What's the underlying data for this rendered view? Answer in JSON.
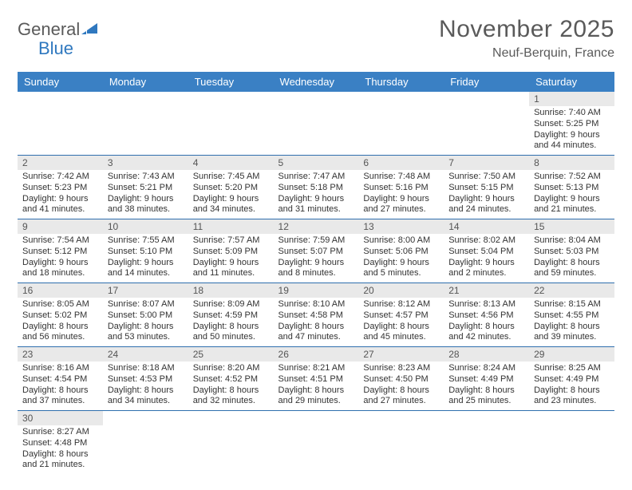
{
  "logo": {
    "text1": "General",
    "text2": "Blue",
    "icon_color": "#2f78bf",
    "text1_color": "#5a5a5a"
  },
  "title": "November 2025",
  "location": "Neuf-Berquin, France",
  "header_bg": "#3a80c4",
  "day_bg": "#e9e9e9",
  "border_color": "#2f6fae",
  "weekdays": [
    "Sunday",
    "Monday",
    "Tuesday",
    "Wednesday",
    "Thursday",
    "Friday",
    "Saturday"
  ],
  "weeks": [
    [
      null,
      null,
      null,
      null,
      null,
      null,
      {
        "n": "1",
        "sr": "Sunrise: 7:40 AM",
        "ss": "Sunset: 5:25 PM",
        "d1": "Daylight: 9 hours",
        "d2": "and 44 minutes."
      }
    ],
    [
      {
        "n": "2",
        "sr": "Sunrise: 7:42 AM",
        "ss": "Sunset: 5:23 PM",
        "d1": "Daylight: 9 hours",
        "d2": "and 41 minutes."
      },
      {
        "n": "3",
        "sr": "Sunrise: 7:43 AM",
        "ss": "Sunset: 5:21 PM",
        "d1": "Daylight: 9 hours",
        "d2": "and 38 minutes."
      },
      {
        "n": "4",
        "sr": "Sunrise: 7:45 AM",
        "ss": "Sunset: 5:20 PM",
        "d1": "Daylight: 9 hours",
        "d2": "and 34 minutes."
      },
      {
        "n": "5",
        "sr": "Sunrise: 7:47 AM",
        "ss": "Sunset: 5:18 PM",
        "d1": "Daylight: 9 hours",
        "d2": "and 31 minutes."
      },
      {
        "n": "6",
        "sr": "Sunrise: 7:48 AM",
        "ss": "Sunset: 5:16 PM",
        "d1": "Daylight: 9 hours",
        "d2": "and 27 minutes."
      },
      {
        "n": "7",
        "sr": "Sunrise: 7:50 AM",
        "ss": "Sunset: 5:15 PM",
        "d1": "Daylight: 9 hours",
        "d2": "and 24 minutes."
      },
      {
        "n": "8",
        "sr": "Sunrise: 7:52 AM",
        "ss": "Sunset: 5:13 PM",
        "d1": "Daylight: 9 hours",
        "d2": "and 21 minutes."
      }
    ],
    [
      {
        "n": "9",
        "sr": "Sunrise: 7:54 AM",
        "ss": "Sunset: 5:12 PM",
        "d1": "Daylight: 9 hours",
        "d2": "and 18 minutes."
      },
      {
        "n": "10",
        "sr": "Sunrise: 7:55 AM",
        "ss": "Sunset: 5:10 PM",
        "d1": "Daylight: 9 hours",
        "d2": "and 14 minutes."
      },
      {
        "n": "11",
        "sr": "Sunrise: 7:57 AM",
        "ss": "Sunset: 5:09 PM",
        "d1": "Daylight: 9 hours",
        "d2": "and 11 minutes."
      },
      {
        "n": "12",
        "sr": "Sunrise: 7:59 AM",
        "ss": "Sunset: 5:07 PM",
        "d1": "Daylight: 9 hours",
        "d2": "and 8 minutes."
      },
      {
        "n": "13",
        "sr": "Sunrise: 8:00 AM",
        "ss": "Sunset: 5:06 PM",
        "d1": "Daylight: 9 hours",
        "d2": "and 5 minutes."
      },
      {
        "n": "14",
        "sr": "Sunrise: 8:02 AM",
        "ss": "Sunset: 5:04 PM",
        "d1": "Daylight: 9 hours",
        "d2": "and 2 minutes."
      },
      {
        "n": "15",
        "sr": "Sunrise: 8:04 AM",
        "ss": "Sunset: 5:03 PM",
        "d1": "Daylight: 8 hours",
        "d2": "and 59 minutes."
      }
    ],
    [
      {
        "n": "16",
        "sr": "Sunrise: 8:05 AM",
        "ss": "Sunset: 5:02 PM",
        "d1": "Daylight: 8 hours",
        "d2": "and 56 minutes."
      },
      {
        "n": "17",
        "sr": "Sunrise: 8:07 AM",
        "ss": "Sunset: 5:00 PM",
        "d1": "Daylight: 8 hours",
        "d2": "and 53 minutes."
      },
      {
        "n": "18",
        "sr": "Sunrise: 8:09 AM",
        "ss": "Sunset: 4:59 PM",
        "d1": "Daylight: 8 hours",
        "d2": "and 50 minutes."
      },
      {
        "n": "19",
        "sr": "Sunrise: 8:10 AM",
        "ss": "Sunset: 4:58 PM",
        "d1": "Daylight: 8 hours",
        "d2": "and 47 minutes."
      },
      {
        "n": "20",
        "sr": "Sunrise: 8:12 AM",
        "ss": "Sunset: 4:57 PM",
        "d1": "Daylight: 8 hours",
        "d2": "and 45 minutes."
      },
      {
        "n": "21",
        "sr": "Sunrise: 8:13 AM",
        "ss": "Sunset: 4:56 PM",
        "d1": "Daylight: 8 hours",
        "d2": "and 42 minutes."
      },
      {
        "n": "22",
        "sr": "Sunrise: 8:15 AM",
        "ss": "Sunset: 4:55 PM",
        "d1": "Daylight: 8 hours",
        "d2": "and 39 minutes."
      }
    ],
    [
      {
        "n": "23",
        "sr": "Sunrise: 8:16 AM",
        "ss": "Sunset: 4:54 PM",
        "d1": "Daylight: 8 hours",
        "d2": "and 37 minutes."
      },
      {
        "n": "24",
        "sr": "Sunrise: 8:18 AM",
        "ss": "Sunset: 4:53 PM",
        "d1": "Daylight: 8 hours",
        "d2": "and 34 minutes."
      },
      {
        "n": "25",
        "sr": "Sunrise: 8:20 AM",
        "ss": "Sunset: 4:52 PM",
        "d1": "Daylight: 8 hours",
        "d2": "and 32 minutes."
      },
      {
        "n": "26",
        "sr": "Sunrise: 8:21 AM",
        "ss": "Sunset: 4:51 PM",
        "d1": "Daylight: 8 hours",
        "d2": "and 29 minutes."
      },
      {
        "n": "27",
        "sr": "Sunrise: 8:23 AM",
        "ss": "Sunset: 4:50 PM",
        "d1": "Daylight: 8 hours",
        "d2": "and 27 minutes."
      },
      {
        "n": "28",
        "sr": "Sunrise: 8:24 AM",
        "ss": "Sunset: 4:49 PM",
        "d1": "Daylight: 8 hours",
        "d2": "and 25 minutes."
      },
      {
        "n": "29",
        "sr": "Sunrise: 8:25 AM",
        "ss": "Sunset: 4:49 PM",
        "d1": "Daylight: 8 hours",
        "d2": "and 23 minutes."
      }
    ],
    [
      {
        "n": "30",
        "sr": "Sunrise: 8:27 AM",
        "ss": "Sunset: 4:48 PM",
        "d1": "Daylight: 8 hours",
        "d2": "and 21 minutes."
      },
      null,
      null,
      null,
      null,
      null,
      null
    ]
  ]
}
